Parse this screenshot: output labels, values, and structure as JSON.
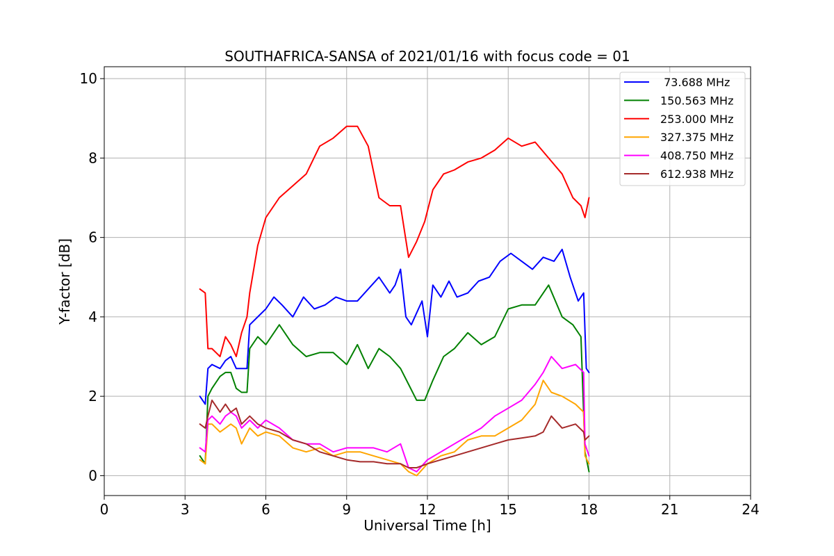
{
  "chart_data": {
    "type": "line",
    "title": "SOUTHAFRICA-SANSA of 2021/01/16 with focus code = 01",
    "xlabel": "Universal Time [h]",
    "ylabel": "Y-factor [dB]",
    "xlim": [
      0,
      24
    ],
    "ylim": [
      -0.5,
      10.3
    ],
    "xticks": [
      0,
      3,
      6,
      9,
      12,
      15,
      18,
      21,
      24
    ],
    "xtick_labels": [
      "0",
      "3",
      "6",
      "9",
      "12",
      "15",
      "18",
      "21",
      "24"
    ],
    "yticks": [
      0,
      2,
      4,
      6,
      8,
      10
    ],
    "ytick_labels": [
      "0",
      "2",
      "4",
      "6",
      "8",
      "10"
    ],
    "grid": true,
    "legend_position": "top-right",
    "series": [
      {
        "name": " 73.688 MHz",
        "color": "#0000ff",
        "x": [
          3.55,
          3.75,
          3.85,
          4.0,
          4.3,
          4.5,
          4.7,
          4.9,
          5.1,
          5.3,
          5.4,
          5.7,
          6.0,
          6.3,
          6.6,
          7.0,
          7.4,
          7.8,
          8.2,
          8.6,
          9.0,
          9.4,
          9.8,
          10.2,
          10.6,
          10.8,
          11.0,
          11.2,
          11.4,
          11.6,
          11.8,
          12.0,
          12.2,
          12.5,
          12.8,
          13.1,
          13.5,
          13.9,
          14.3,
          14.7,
          15.1,
          15.5,
          15.9,
          16.3,
          16.7,
          17.0,
          17.3,
          17.6,
          17.8,
          17.9,
          18.0
        ],
        "y": [
          2.0,
          1.8,
          2.7,
          2.8,
          2.7,
          2.9,
          3.0,
          2.7,
          2.7,
          2.7,
          3.8,
          4.0,
          4.2,
          4.5,
          4.3,
          4.0,
          4.5,
          4.2,
          4.3,
          4.5,
          4.4,
          4.4,
          4.7,
          5.0,
          4.6,
          4.8,
          5.2,
          4.0,
          3.8,
          4.1,
          4.4,
          3.5,
          4.8,
          4.5,
          4.9,
          4.5,
          4.6,
          4.9,
          5.0,
          5.4,
          5.6,
          5.4,
          5.2,
          5.5,
          5.4,
          5.7,
          5.0,
          4.4,
          4.6,
          2.7,
          2.6
        ]
      },
      {
        "name": "150.563 MHz",
        "color": "#008000",
        "x": [
          3.55,
          3.75,
          3.85,
          4.0,
          4.3,
          4.5,
          4.7,
          4.9,
          5.1,
          5.3,
          5.4,
          5.7,
          6.0,
          6.5,
          7.0,
          7.5,
          8.0,
          8.5,
          9.0,
          9.4,
          9.8,
          10.2,
          10.6,
          11.0,
          11.3,
          11.6,
          11.9,
          12.2,
          12.6,
          13.0,
          13.5,
          14.0,
          14.5,
          15.0,
          15.5,
          16.0,
          16.5,
          17.0,
          17.4,
          17.7,
          17.85,
          18.0
        ],
        "y": [
          0.5,
          0.3,
          2.0,
          2.2,
          2.5,
          2.6,
          2.6,
          2.2,
          2.1,
          2.1,
          3.2,
          3.5,
          3.3,
          3.8,
          3.3,
          3.0,
          3.1,
          3.1,
          2.8,
          3.3,
          2.7,
          3.2,
          3.0,
          2.7,
          2.3,
          1.9,
          1.9,
          2.4,
          3.0,
          3.2,
          3.6,
          3.3,
          3.5,
          4.2,
          4.3,
          4.3,
          4.8,
          4.0,
          3.8,
          3.5,
          0.6,
          0.1
        ]
      },
      {
        "name": "253.000 MHz",
        "color": "#ff0000",
        "x": [
          3.55,
          3.75,
          3.85,
          4.0,
          4.3,
          4.5,
          4.7,
          4.9,
          5.1,
          5.3,
          5.4,
          5.7,
          6.0,
          6.5,
          7.0,
          7.5,
          8.0,
          8.5,
          9.0,
          9.4,
          9.8,
          10.2,
          10.6,
          11.0,
          11.3,
          11.6,
          11.9,
          12.2,
          12.6,
          13.0,
          13.5,
          14.0,
          14.5,
          15.0,
          15.5,
          16.0,
          16.5,
          17.0,
          17.4,
          17.7,
          17.85,
          18.0
        ],
        "y": [
          4.7,
          4.6,
          3.2,
          3.2,
          3.0,
          3.5,
          3.3,
          3.0,
          3.6,
          4.0,
          4.6,
          5.8,
          6.5,
          7.0,
          7.3,
          7.6,
          8.3,
          8.5,
          8.8,
          8.8,
          8.3,
          7.0,
          6.8,
          6.8,
          5.5,
          5.9,
          6.4,
          7.2,
          7.6,
          7.7,
          7.9,
          8.0,
          8.2,
          8.5,
          8.3,
          8.4,
          8.0,
          7.6,
          7.0,
          6.8,
          6.5,
          7.0
        ]
      },
      {
        "name": "327.375 MHz",
        "color": "#ffa500",
        "x": [
          3.55,
          3.75,
          3.85,
          4.0,
          4.3,
          4.5,
          4.7,
          4.9,
          5.1,
          5.4,
          5.7,
          6.0,
          6.5,
          7.0,
          7.5,
          8.0,
          8.5,
          9.0,
          9.5,
          10.0,
          10.5,
          11.0,
          11.3,
          11.6,
          12.0,
          12.5,
          13.0,
          13.5,
          14.0,
          14.5,
          15.0,
          15.5,
          16.0,
          16.3,
          16.6,
          17.0,
          17.5,
          17.8,
          17.85,
          18.0
        ],
        "y": [
          0.4,
          0.3,
          1.3,
          1.3,
          1.1,
          1.2,
          1.3,
          1.2,
          0.8,
          1.2,
          1.0,
          1.1,
          1.0,
          0.7,
          0.6,
          0.7,
          0.5,
          0.6,
          0.6,
          0.5,
          0.4,
          0.3,
          0.1,
          0.0,
          0.3,
          0.5,
          0.6,
          0.9,
          1.0,
          1.0,
          1.2,
          1.4,
          1.8,
          2.4,
          2.1,
          2.0,
          1.8,
          1.6,
          0.5,
          0.3
        ]
      },
      {
        "name": "408.750 MHz",
        "color": "#ff00ff",
        "x": [
          3.55,
          3.75,
          3.85,
          4.0,
          4.3,
          4.5,
          4.7,
          4.9,
          5.1,
          5.4,
          5.7,
          6.0,
          6.5,
          7.0,
          7.5,
          8.0,
          8.5,
          9.0,
          9.5,
          10.0,
          10.5,
          11.0,
          11.3,
          11.6,
          12.0,
          12.5,
          13.0,
          13.5,
          14.0,
          14.5,
          15.0,
          15.5,
          16.0,
          16.3,
          16.6,
          17.0,
          17.5,
          17.8,
          17.85,
          18.0
        ],
        "y": [
          0.7,
          0.6,
          1.4,
          1.5,
          1.3,
          1.5,
          1.6,
          1.5,
          1.2,
          1.4,
          1.2,
          1.4,
          1.2,
          0.9,
          0.8,
          0.8,
          0.6,
          0.7,
          0.7,
          0.7,
          0.6,
          0.8,
          0.2,
          0.1,
          0.4,
          0.6,
          0.8,
          1.0,
          1.2,
          1.5,
          1.7,
          1.9,
          2.3,
          2.6,
          3.0,
          2.7,
          2.8,
          2.6,
          0.8,
          0.5
        ]
      },
      {
        "name": "612.938 MHz",
        "color": "#a52a2a",
        "x": [
          3.55,
          3.75,
          3.85,
          4.0,
          4.3,
          4.5,
          4.7,
          4.9,
          5.1,
          5.4,
          5.7,
          6.0,
          6.5,
          7.0,
          7.5,
          8.0,
          8.5,
          9.0,
          9.5,
          10.0,
          10.5,
          11.0,
          11.3,
          11.6,
          12.0,
          12.5,
          13.0,
          13.5,
          14.0,
          14.5,
          15.0,
          15.5,
          16.0,
          16.3,
          16.6,
          17.0,
          17.5,
          17.8,
          17.85,
          18.0
        ],
        "y": [
          1.3,
          1.2,
          1.5,
          1.9,
          1.6,
          1.8,
          1.6,
          1.7,
          1.3,
          1.5,
          1.3,
          1.2,
          1.1,
          0.9,
          0.8,
          0.6,
          0.5,
          0.4,
          0.35,
          0.35,
          0.3,
          0.3,
          0.2,
          0.2,
          0.3,
          0.4,
          0.5,
          0.6,
          0.7,
          0.8,
          0.9,
          0.95,
          1.0,
          1.1,
          1.5,
          1.2,
          1.3,
          1.1,
          0.9,
          1.0
        ]
      }
    ]
  }
}
